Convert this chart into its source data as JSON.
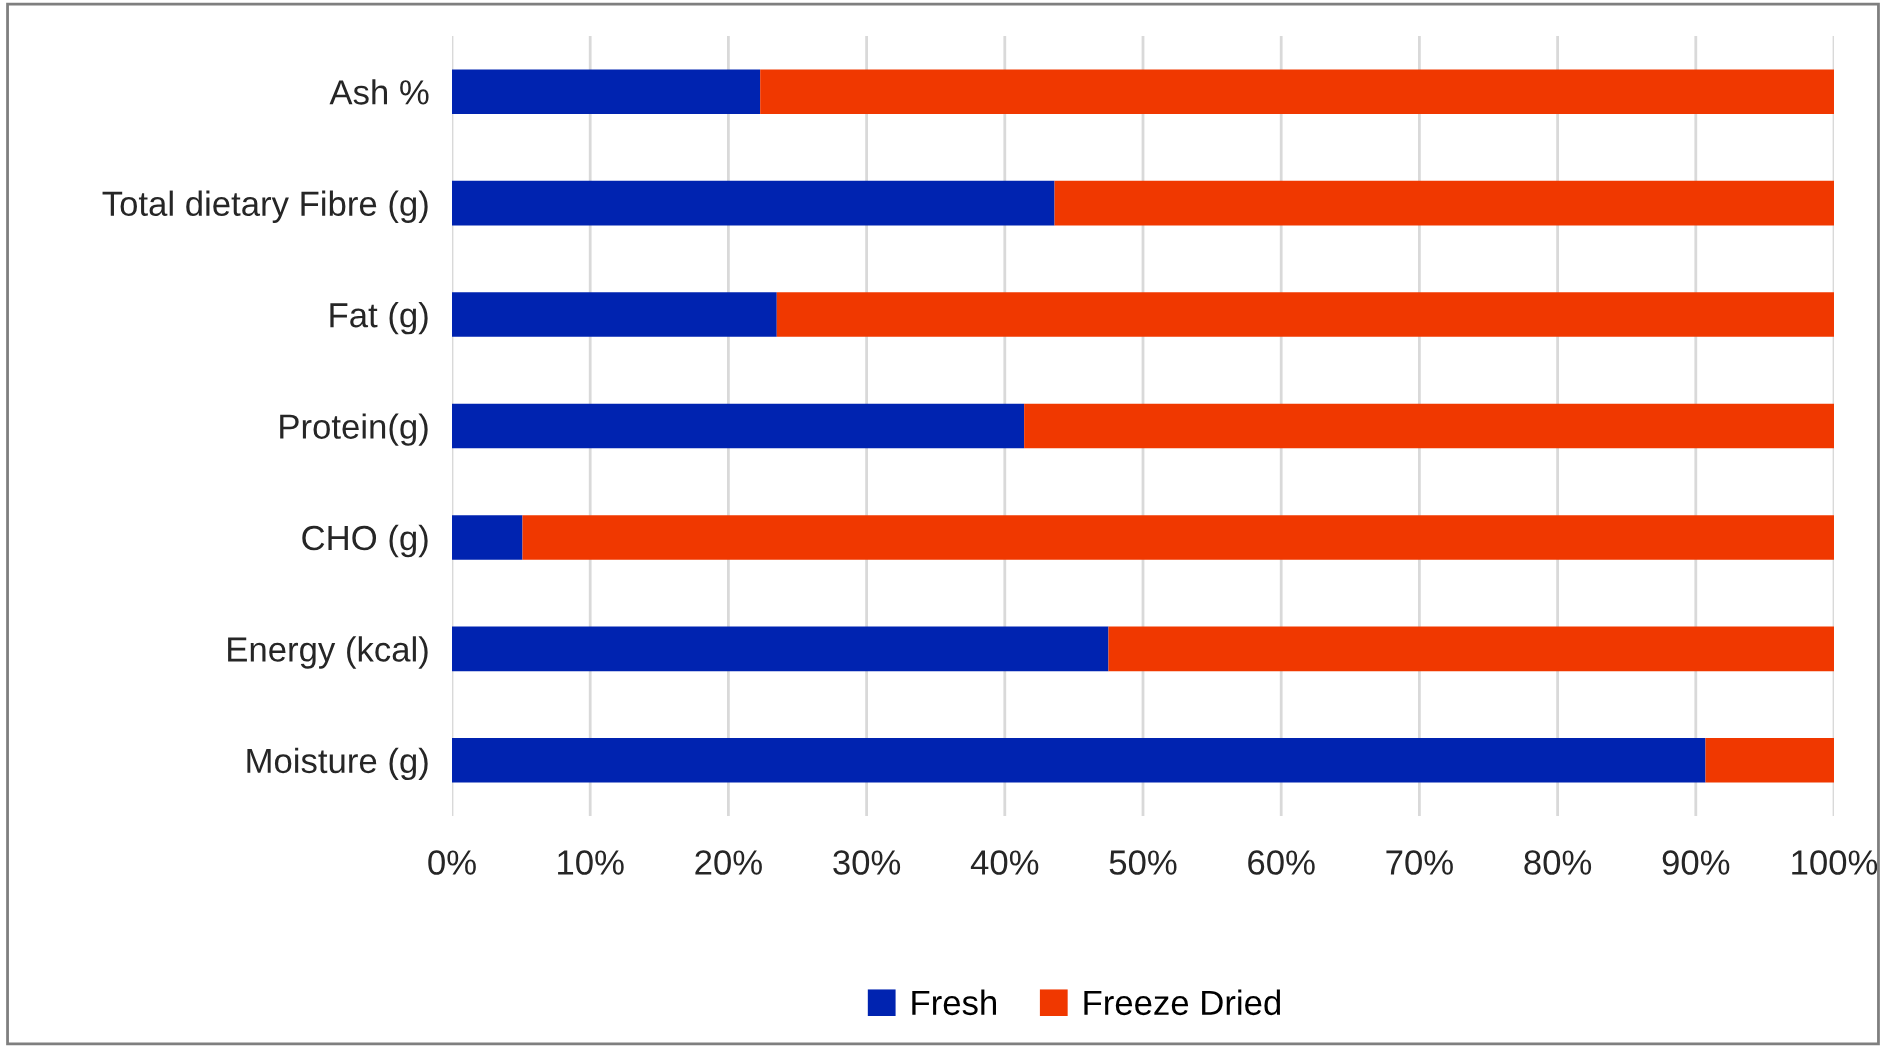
{
  "chart_data": {
    "type": "bar",
    "orientation": "horizontal",
    "stacked": true,
    "categories": [
      "Ash %",
      "Total dietary Fibre (g)",
      "Fat (g)",
      "Protein(g)",
      "CHO (g)",
      "Energy (kcal)",
      "Moisture (g)"
    ],
    "series": [
      {
        "name": "Fresh",
        "color": "#0023b0",
        "values": [
          22.3,
          43.6,
          23.5,
          41.4,
          5.1,
          47.5,
          90.7
        ]
      },
      {
        "name": "Freeze Dried",
        "color": "#f03800",
        "values": [
          77.7,
          56.4,
          76.5,
          58.6,
          94.9,
          52.5,
          9.3
        ]
      }
    ],
    "xlim": [
      0,
      100
    ],
    "xticks": [
      {
        "value": 0,
        "label": "0%"
      },
      {
        "value": 10,
        "label": "10%"
      },
      {
        "value": 20,
        "label": "20%"
      },
      {
        "value": 30,
        "label": "30%"
      },
      {
        "value": 40,
        "label": "40%"
      },
      {
        "value": 50,
        "label": "50%"
      },
      {
        "value": 60,
        "label": "60%"
      },
      {
        "value": 70,
        "label": "70%"
      },
      {
        "value": 80,
        "label": "80%"
      },
      {
        "value": 90,
        "label": "90%"
      },
      {
        "value": 100,
        "label": "100%"
      }
    ],
    "grid": "x",
    "legend": "bottom"
  }
}
